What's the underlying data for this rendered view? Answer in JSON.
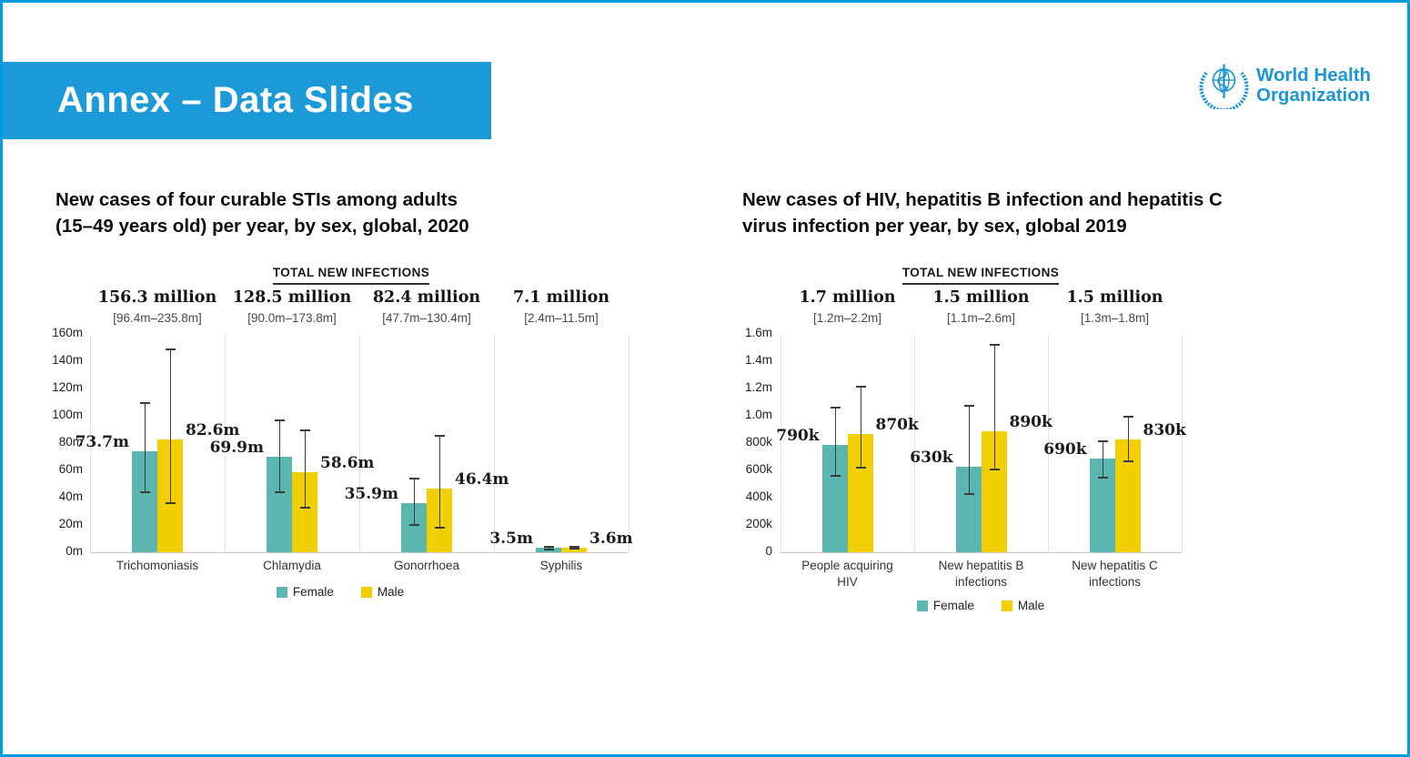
{
  "slide": {
    "banner_title": "Annex – Data Slides",
    "logo": {
      "line1": "World Health",
      "line2": "Organization"
    },
    "colors": {
      "banner_blue": "#1B9AD7",
      "frame_blue": "#009CDE",
      "logo_blue": "#1D96D4",
      "female": "#5BB5B1",
      "male": "#F1CF01",
      "error_bar": "#3B3B3B"
    }
  },
  "chart_data": [
    {
      "type": "bar",
      "title_lines": [
        "New cases of four curable STIs among adults",
        "(15–49 years old) per year, by sex, global, 2020"
      ],
      "header": "TOTAL NEW INFECTIONS",
      "unit": "millions of new cases",
      "legend": [
        "Female",
        "Male"
      ],
      "ylim": [
        0,
        160
      ],
      "yticks": [
        {
          "value": 160,
          "label": "160m"
        },
        {
          "value": 140,
          "label": "140m"
        },
        {
          "value": 120,
          "label": "120m"
        },
        {
          "value": 100,
          "label": "100m"
        },
        {
          "value": 80,
          "label": "80m"
        },
        {
          "value": 60,
          "label": "60m"
        },
        {
          "value": 40,
          "label": "40m"
        },
        {
          "value": 20,
          "label": "20m"
        },
        {
          "value": 0,
          "label": "0m"
        }
      ],
      "groups": [
        {
          "category_lines": [
            "Trichomoniasis"
          ],
          "total": "156.3 million",
          "range": "[96.4m–235.8m]",
          "bars": [
            {
              "series": "Female",
              "value": 73.7,
              "label": "73.7m",
              "err_lo": 44.0,
              "err_hi": 109.8
            },
            {
              "series": "Male",
              "value": 82.6,
              "label": "82.6m",
              "err_lo": 35.9,
              "err_hi": 149.6
            }
          ]
        },
        {
          "category_lines": [
            "Chlamydia"
          ],
          "total": "128.5 million",
          "range": "[90.0m–173.8m]",
          "bars": [
            {
              "series": "Female",
              "value": 69.9,
              "label": "69.9m",
              "err_lo": 44.0,
              "err_hi": 97.6
            },
            {
              "series": "Male",
              "value": 58.6,
              "label": "58.6m",
              "err_lo": 32.9,
              "err_hi": 90.2
            }
          ]
        },
        {
          "category_lines": [
            "Gonorrhoea"
          ],
          "total": "82.4 million",
          "range": "[47.7m–130.4m]",
          "bars": [
            {
              "series": "Female",
              "value": 35.9,
              "label": "35.9m",
              "err_lo": 19.8,
              "err_hi": 54.6
            },
            {
              "series": "Male",
              "value": 46.4,
              "label": "46.4m",
              "err_lo": 17.7,
              "err_hi": 86.0
            }
          ]
        },
        {
          "category_lines": [
            "Syphilis"
          ],
          "total": "7.1 million",
          "range": "[2.4m–11.5m]",
          "bars": [
            {
              "series": "Female",
              "value": 3.5,
              "label": "3.5m",
              "err_lo": 2.3,
              "err_hi": 4.8
            },
            {
              "series": "Male",
              "value": 3.6,
              "label": "3.6m",
              "err_lo": 2.4,
              "err_hi": 4.9
            }
          ]
        }
      ]
    },
    {
      "type": "bar",
      "title_lines": [
        "New cases of HIV, hepatitis B infection and hepatitis C",
        "virus infection per year, by sex, global 2019"
      ],
      "header": "TOTAL NEW INFECTIONS",
      "unit": "thousands of new cases",
      "legend": [
        "Female",
        "Male"
      ],
      "ylim": [
        0,
        1600
      ],
      "yticks": [
        {
          "value": 1600,
          "label": "1.6m"
        },
        {
          "value": 1400,
          "label": "1.4m"
        },
        {
          "value": 1200,
          "label": "1.2m"
        },
        {
          "value": 1000,
          "label": "1.0m"
        },
        {
          "value": 800,
          "label": "800k"
        },
        {
          "value": 600,
          "label": "600k"
        },
        {
          "value": 400,
          "label": "400k"
        },
        {
          "value": 200,
          "label": "200k"
        },
        {
          "value": 0,
          "label": "0"
        }
      ],
      "groups": [
        {
          "category_lines": [
            "People acquiring",
            "HIV"
          ],
          "total": "1.7 million",
          "range": "[1.2m–2.2m]",
          "bars": [
            {
              "series": "Female",
              "value": 790,
              "label": "790k",
              "err_lo": 560,
              "err_hi": 1070
            },
            {
              "series": "Male",
              "value": 870,
              "label": "870k",
              "err_lo": 620,
              "err_hi": 1220
            }
          ]
        },
        {
          "category_lines": [
            "New hepatitis B",
            "infections"
          ],
          "total": "1.5 million",
          "range": "[1.1m–2.6m]",
          "bars": [
            {
              "series": "Female",
              "value": 630,
              "label": "630k",
              "err_lo": 430,
              "err_hi": 1080
            },
            {
              "series": "Male",
              "value": 890,
              "label": "890k",
              "err_lo": 610,
              "err_hi": 1530
            }
          ]
        },
        {
          "category_lines": [
            "New hepatitis C",
            "infections"
          ],
          "total": "1.5 million",
          "range": "[1.3m–1.8m]",
          "bars": [
            {
              "series": "Female",
              "value": 690,
              "label": "690k",
              "err_lo": 550,
              "err_hi": 820
            },
            {
              "series": "Male",
              "value": 830,
              "label": "830k",
              "err_lo": 670,
              "err_hi": 1000
            }
          ]
        }
      ]
    }
  ]
}
